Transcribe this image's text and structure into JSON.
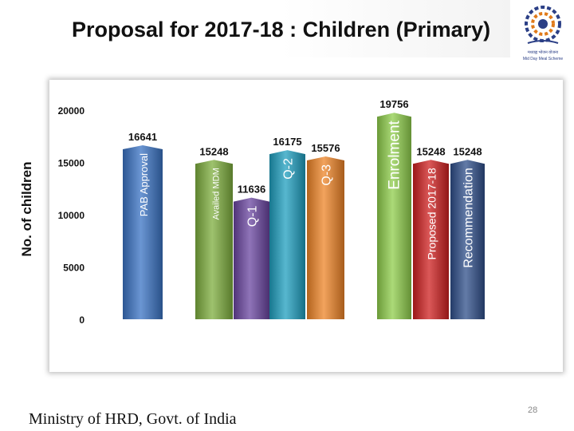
{
  "slide": {
    "title": "Proposal for 2017-18 : Children (Primary)",
    "footer": "Ministry of HRD, Govt. of India",
    "page_number": "28",
    "logo_text_line1": "मध्याह्न भोजन योजना",
    "logo_text_line2": "Mid Day Meal Scheme"
  },
  "chart_data": {
    "type": "bar",
    "title": "",
    "xlabel": "",
    "ylabel": "No. of children",
    "ylim": [
      0,
      20000
    ],
    "yticks": [
      "0",
      "5000",
      "10000",
      "15000",
      "20000"
    ],
    "categories": [
      "PAB Approval",
      "Availed MDM",
      "Q-1",
      "Q-2",
      "Q-3",
      "Enrolment",
      "Proposed 2017-18",
      "Recommendation"
    ],
    "values": [
      16641,
      15248,
      11636,
      16175,
      15576,
      19756,
      15248,
      15248
    ],
    "value_labels": [
      "16641",
      "15248",
      "11636",
      "16175",
      "15576",
      "19756",
      "15248",
      "15248"
    ],
    "colors": [
      "#3a73c4",
      "#7dae3e",
      "#6a45a0",
      "#1f9fbf",
      "#ee8427",
      "#8fcd4b",
      "#cf2020",
      "#2f4f8a"
    ],
    "grid": false,
    "legend": "none"
  }
}
